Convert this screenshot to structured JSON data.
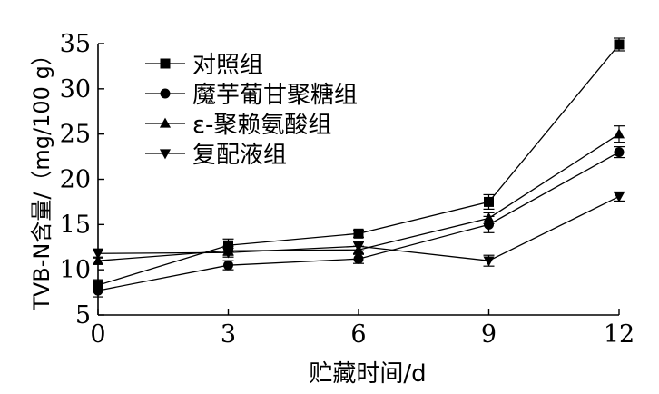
{
  "chart_data": {
    "type": "line",
    "xlabel": "贮藏时间/d",
    "ylabel": "TVB-N含量/（mg/100 g）",
    "x": [
      0,
      3,
      6,
      9,
      12
    ],
    "xlim": [
      0,
      12
    ],
    "ylim": [
      5,
      35
    ],
    "xticks": [
      0,
      3,
      6,
      9,
      12
    ],
    "yticks": [
      5,
      10,
      15,
      20,
      25,
      30,
      35
    ],
    "grid": false,
    "legend_position": "top-left",
    "series": [
      {
        "name": "对照组",
        "marker": "square",
        "values": [
          8.3,
          12.7,
          14.0,
          17.5,
          34.9
        ],
        "errors": [
          0.6,
          0.7,
          0.4,
          0.8,
          0.7
        ]
      },
      {
        "name": "魔芋葡甘聚糖组",
        "marker": "circle",
        "values": [
          7.7,
          10.5,
          11.2,
          15.0,
          23.0
        ],
        "errors": [
          0.7,
          0.5,
          0.5,
          0.9,
          0.6
        ]
      },
      {
        "name": "ε-聚赖氨酸组",
        "marker": "triangle-up",
        "values": [
          11.0,
          12.1,
          12.2,
          15.7,
          25.0
        ],
        "errors": [
          0.4,
          0.5,
          0.4,
          0.6,
          0.9
        ]
      },
      {
        "name": "复配液组",
        "marker": "triangle-down",
        "values": [
          11.8,
          11.9,
          12.6,
          11.0,
          18.1
        ],
        "errors": [
          0.5,
          0.5,
          0.5,
          0.6,
          0.5
        ]
      }
    ]
  }
}
